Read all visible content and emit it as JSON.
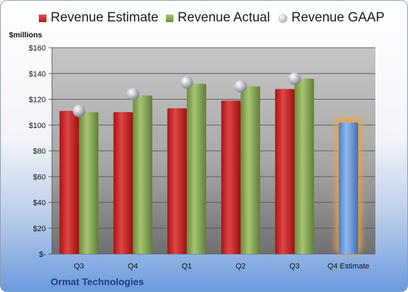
{
  "legend": {
    "estimate": "Revenue Estimate",
    "actual": "Revenue Actual",
    "gaap": "Revenue GAAP"
  },
  "footer": {
    "company": "Ormat Technologies"
  },
  "colors": {
    "estimate": "#c92424",
    "actual": "#8aad57",
    "gaap": "#b3b7bf",
    "forecast": "#6a9fe0",
    "forecast_glow": "#f0a040"
  },
  "chart_data": {
    "type": "bar",
    "title": "",
    "xlabel": "",
    "ylabel": "$millions",
    "ylim": [
      0,
      160
    ],
    "yticks": [
      0,
      20,
      40,
      60,
      80,
      100,
      120,
      140,
      160
    ],
    "ytick_labels": [
      "$-",
      "$20",
      "$40",
      "$60",
      "$80",
      "$100",
      "$120",
      "$140",
      "$160"
    ],
    "grid": true,
    "legend_position": "top",
    "categories": [
      "Q3",
      "Q4",
      "Q1",
      "Q2",
      "Q3",
      "Q4 Estimate"
    ],
    "series": [
      {
        "name": "Revenue Estimate",
        "kind": "bar",
        "values": [
          111,
          110,
          113,
          119,
          128,
          null
        ]
      },
      {
        "name": "Revenue Actual",
        "kind": "bar",
        "values": [
          110,
          123,
          132,
          130,
          136,
          null
        ]
      },
      {
        "name": "Revenue GAAP",
        "kind": "marker",
        "values": [
          111,
          124,
          133,
          130,
          136,
          null
        ]
      }
    ],
    "forecast": {
      "category": "Q4 Estimate",
      "value": 102
    }
  }
}
